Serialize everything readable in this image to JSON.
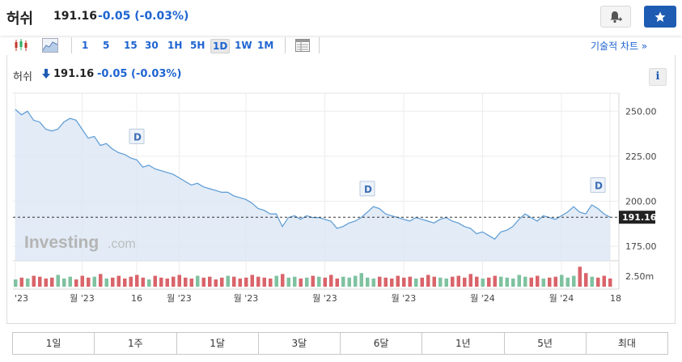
{
  "header": {
    "name": "허쉬",
    "price": "191.16",
    "change": "-0.05",
    "change_pct": "(-0.03%)",
    "accent": "#1e64d1",
    "button_color": "#1e5cb3",
    "alert_icon": "bell-plus-icon",
    "watch_icon": "star-icon"
  },
  "toolbar": {
    "chart_type_icons": [
      "candlestick-icon",
      "area-chart-icon"
    ],
    "intervals": [
      "1",
      "5",
      "15",
      "30",
      "1H",
      "5H",
      "1D",
      "1W",
      "1M"
    ],
    "active_interval": "1D",
    "table_icon": "table-icon",
    "tech_chart_link": "기술적 차트 »"
  },
  "chart_header": {
    "name": "허쉬",
    "direction_icon": "down-arrow-icon",
    "price": "191.16",
    "change": "-0.05",
    "change_pct": "(-0.03%)",
    "info_label": "i"
  },
  "chart_data": {
    "type": "area",
    "y_ticks": [
      "250.00",
      "225.00",
      "200.00",
      "175.00"
    ],
    "y_tick_values": [
      250,
      225,
      200,
      175
    ],
    "ylim": [
      167,
      260
    ],
    "x_tick_labels": [
      "'23",
      "월 '23",
      "16",
      "월 '23",
      "월 '23",
      "월 '23",
      "월 '23",
      "월 '24",
      "월 '24",
      "18"
    ],
    "x_tick_index": [
      0,
      11,
      20,
      27,
      38,
      51,
      64,
      77,
      90,
      98
    ],
    "last_price_label": "191.16",
    "last_price": 191.16,
    "watermark": "Investing",
    "watermark_suffix": ".com",
    "dividend_marker_label": "D",
    "dividend_index": [
      20,
      58,
      96
    ],
    "volume_label": "2.50m",
    "line_color": "#5b9bd5",
    "fill_color": "#dde8f4",
    "volume_up_color": "#7fc2a0",
    "volume_down_color": "#d9646a",
    "values": [
      251,
      248,
      250,
      245,
      244,
      240,
      239,
      240,
      244,
      246,
      245,
      240,
      235,
      236,
      231,
      232,
      229,
      227,
      226,
      224,
      223,
      219,
      220,
      218,
      217,
      216,
      215,
      213,
      211,
      209,
      210,
      208,
      207,
      206,
      205,
      205,
      203,
      202,
      201,
      199,
      196,
      195,
      193,
      193,
      186,
      191,
      192,
      190,
      192,
      191,
      191,
      190,
      189,
      185,
      186,
      188,
      189,
      191,
      194,
      197,
      196,
      193,
      192,
      191,
      190,
      189,
      191,
      190,
      189,
      188,
      190,
      191,
      189,
      188,
      186,
      185,
      182,
      183,
      181,
      179,
      183,
      184,
      186,
      190,
      193,
      191,
      189,
      192,
      191,
      190,
      192,
      194,
      197,
      194,
      193,
      198,
      196,
      193,
      191.16
    ],
    "volumes": [
      0.8,
      1.0,
      0.9,
      1.2,
      1.1,
      0.9,
      1.0,
      1.3,
      0.9,
      1.1,
      0.8,
      1.2,
      1.0,
      1.1,
      1.4,
      0.9,
      1.0,
      1.2,
      0.9,
      1.1,
      1.3,
      1.0,
      0.8,
      1.2,
      1.0,
      0.9,
      1.1,
      1.3,
      1.0,
      0.9,
      1.2,
      1.0,
      1.1,
      0.8,
      1.0,
      1.2,
      1.1,
      0.9,
      1.0,
      1.3,
      1.1,
      1.0,
      0.9,
      1.2,
      1.4,
      1.0,
      1.1,
      0.9,
      1.0,
      1.2,
      1.1,
      1.0,
      1.3,
      0.9,
      1.1,
      1.0,
      1.2,
      1.5,
      1.0,
      0.9,
      1.1,
      1.0,
      0.9,
      1.2,
      1.0,
      1.1,
      0.9,
      1.0,
      1.3,
      1.1,
      1.0,
      0.9,
      1.1,
      1.2,
      1.0,
      1.4,
      1.1,
      0.9,
      1.0,
      1.2,
      1.1,
      1.0,
      0.9,
      1.3,
      1.1,
      1.0,
      1.2,
      0.9,
      1.0,
      1.1,
      1.3,
      1.0,
      1.2,
      2.2,
      1.5,
      1.1,
      1.0,
      1.2,
      0.9
    ]
  },
  "ranges": [
    "1일",
    "1주",
    "1달",
    "3달",
    "6달",
    "1년",
    "5년",
    "최대"
  ]
}
